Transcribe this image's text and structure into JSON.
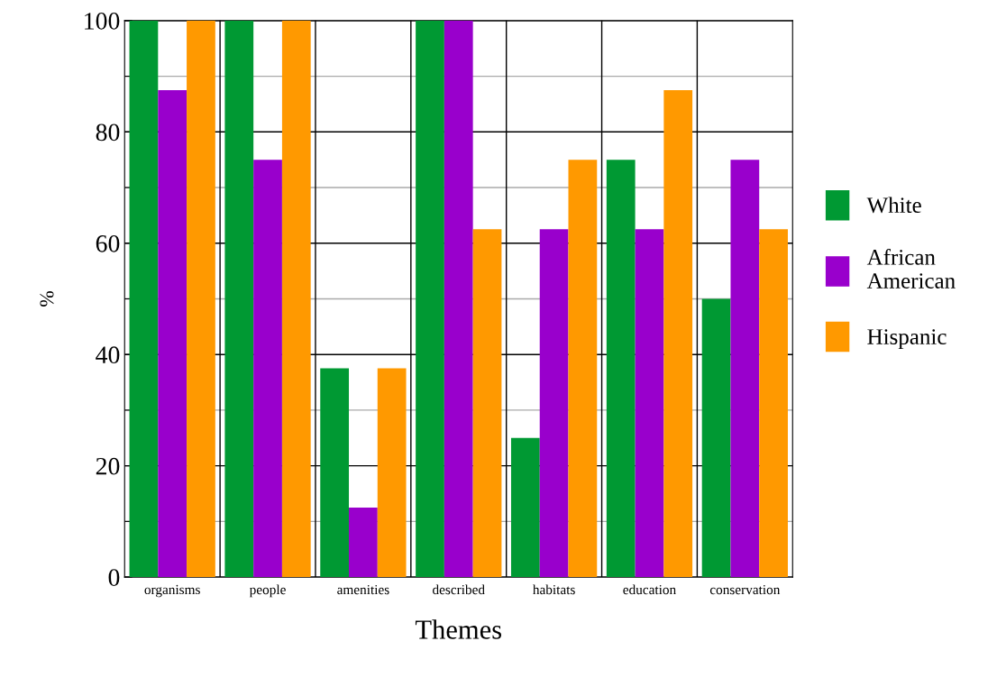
{
  "chart_data": {
    "type": "bar",
    "xlabel": "Themes",
    "ylabel": "%",
    "categories": [
      "organisms",
      "people",
      "amenities",
      "described",
      "habitats",
      "education",
      "conservation"
    ],
    "series": [
      {
        "name": "White",
        "color": "#009933",
        "values": [
          100,
          100,
          37.5,
          100,
          25,
          75,
          50
        ]
      },
      {
        "name": "African American",
        "color": "#9900cc",
        "values": [
          87.5,
          75,
          12.5,
          100,
          62.5,
          62.5,
          75
        ]
      },
      {
        "name": "Hispanic",
        "color": "#ff9900",
        "values": [
          100,
          100,
          37.5,
          62.5,
          75,
          87.5,
          62.5
        ]
      }
    ],
    "ylim": [
      0,
      100
    ],
    "yticks": [
      0,
      {
        "value": 10,
        "label": null
      },
      20,
      {
        "value": 30,
        "label": null
      },
      40,
      {
        "value": 50,
        "label": null
      },
      60,
      {
        "value": 70,
        "label": null
      },
      80,
      {
        "value": 90,
        "label": null
      },
      100
    ],
    "grid": true,
    "legend": "right"
  }
}
